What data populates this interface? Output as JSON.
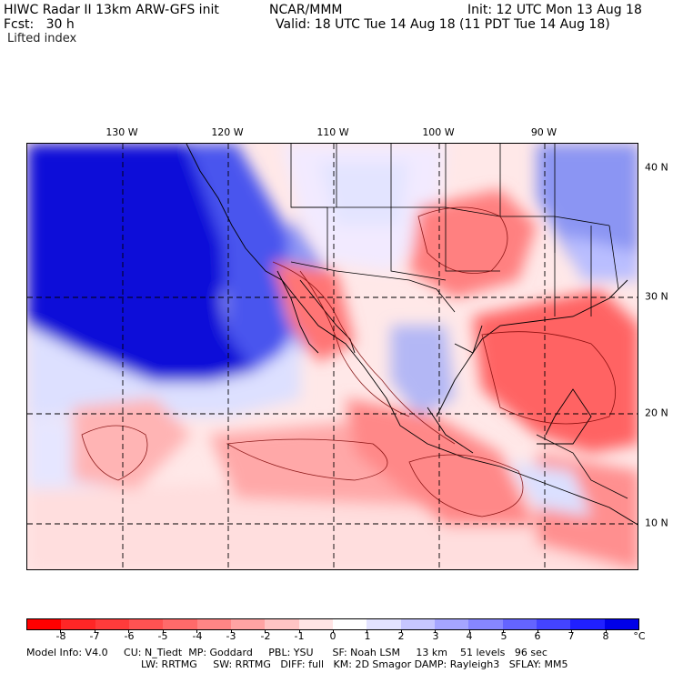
{
  "header": {
    "title": "HIWC Radar II 13km ARW-GFS init",
    "center": "NCAR/MMM",
    "init": "Init: 12 UTC Mon 13 Aug 18",
    "fcst": "Fcst:   30 h",
    "valid": "Valid: 18 UTC Tue 14 Aug 18 (11 PDT Tue 14 Aug 18)",
    "field": "Lifted index"
  },
  "axes": {
    "lon_labels": [
      "130 W",
      "120 W",
      "110 W",
      "100 W",
      "90 W"
    ],
    "lat_labels": [
      "40 N",
      "30 N",
      "20 N",
      "10 N"
    ]
  },
  "colorbar": {
    "ticks": [
      "-8",
      "-7",
      "-6",
      "-5",
      "-4",
      "-3",
      "-2",
      "-1",
      "0",
      "1",
      "2",
      "3",
      "4",
      "5",
      "6",
      "7",
      "8"
    ],
    "unit": "°C",
    "colors": [
      "#ff0000",
      "#ff2626",
      "#ff3b3b",
      "#ff5252",
      "#ff6a6a",
      "#ff8585",
      "#ffa3a3",
      "#ffc4c4",
      "#ffe4e4",
      "#ffffff",
      "#e3e3ff",
      "#c6c6ff",
      "#a5a5ff",
      "#8686ff",
      "#6464ff",
      "#4444ff",
      "#2020ff",
      "#0000e8"
    ]
  },
  "footer": {
    "line1": "Model Info: V4.0     CU: N_Tiedt  MP: Goddard     PBL: YSU      SF: Noah LSM     13 km    51 levels   96 sec",
    "line2": "LW: RRTMG     SW: RRTMG   DIFF: full   KM: 2D Smagor DAMP: Rayleigh3   SFLAY: MM5"
  }
}
